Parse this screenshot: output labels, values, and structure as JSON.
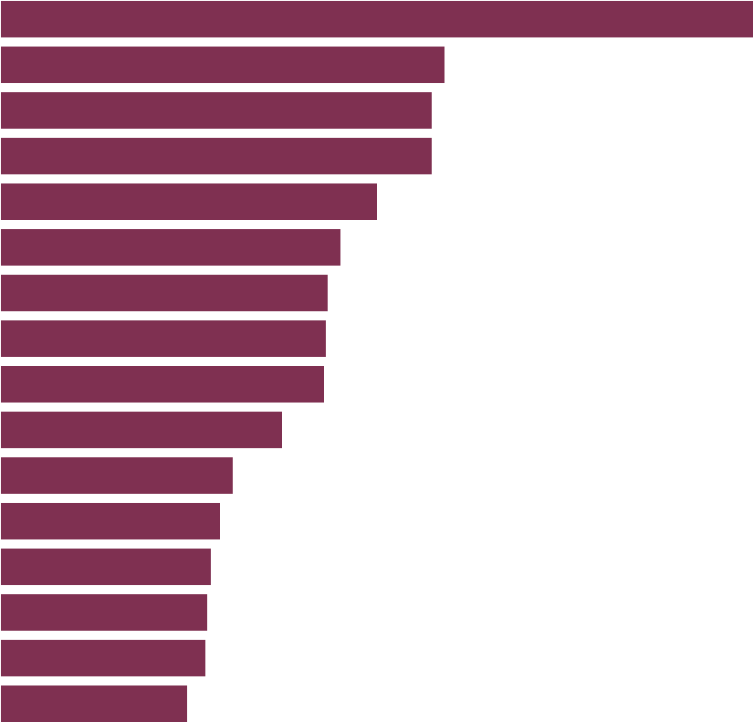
{
  "chart_data": {
    "type": "bar",
    "orientation": "horizontal",
    "values": [
      412,
      243,
      236,
      236,
      206,
      186,
      179,
      178,
      177,
      154,
      127,
      120,
      115,
      113,
      112,
      102
    ],
    "grid": false,
    "legend": "none",
    "colors": {
      "bar": "#7f3051",
      "background": "#ffffff"
    }
  }
}
